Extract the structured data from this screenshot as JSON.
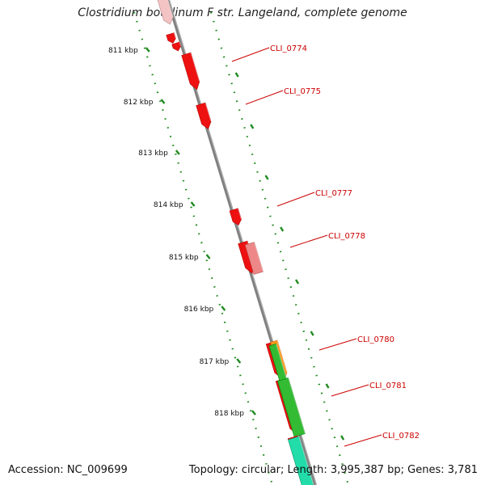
{
  "title": "Clostridium botulinum F str. Langeland, complete genome",
  "footer": {
    "accession": "Accession: NC_009699",
    "summary": "Topology: circular; Length: 3,995,387 bp; Genes: 3,781"
  },
  "colors": {
    "backbone": "#808080",
    "ruler_ticks": "#1f8a1f",
    "gene_label": "#cc0000",
    "gene_red": "#ee1111",
    "gene_pink": "#ee8888",
    "gene_orange": "#ff9a1a",
    "gene_green": "#33bb33",
    "gene_teal": "#22ddaa"
  },
  "ruler": [
    {
      "label": "811 kbp"
    },
    {
      "label": "812 kbp"
    },
    {
      "label": "813 kbp"
    },
    {
      "label": "814 kbp"
    },
    {
      "label": "815 kbp"
    },
    {
      "label": "816 kbp"
    },
    {
      "label": "817 kbp"
    },
    {
      "label": "818 kbp"
    }
  ],
  "gene_labels": [
    {
      "label": "CLI_0774"
    },
    {
      "label": "CLI_0775"
    },
    {
      "label": "CLI_0777"
    },
    {
      "label": "CLI_0778"
    },
    {
      "label": "CLI_0780"
    },
    {
      "label": "CLI_0781"
    },
    {
      "label": "CLI_0782"
    }
  ]
}
